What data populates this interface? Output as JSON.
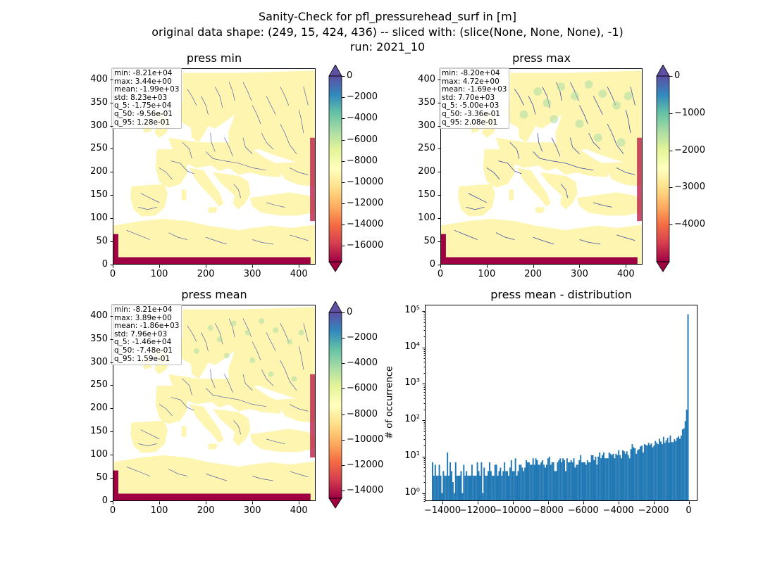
{
  "title": {
    "line1": "Sanity-Check for pfl_pressurehead_surf in [m]",
    "line2": "original data shape: (249, 15, 424, 436) -- sliced with: (slice(None, None, None), -1)",
    "line3": "run: 2021_10"
  },
  "colors": {
    "spectral": [
      "#9e0142",
      "#d53e4f",
      "#f46d43",
      "#fdae61",
      "#fee08b",
      "#ffffbf",
      "#e6f598",
      "#abdda4",
      "#66c2a5",
      "#3288bd",
      "#5e4fa2"
    ],
    "hist_bar": "#1f77b4",
    "river": "#3b4aa8",
    "land": "#fdf5b0"
  },
  "chart_data": [
    {
      "type": "heatmap",
      "title": "press min",
      "xlim": [
        0,
        436
      ],
      "ylim": [
        0,
        424
      ],
      "xticks": [
        "0",
        "100",
        "200",
        "300",
        "400"
      ],
      "yticks": [
        "0",
        "50",
        "100",
        "150",
        "200",
        "250",
        "300",
        "350",
        "400"
      ],
      "colorbar": {
        "min": -17500,
        "max": 0,
        "ticks": [
          "0",
          "−2000",
          "−4000",
          "−6000",
          "−8000",
          "−10000",
          "−12000",
          "−14000",
          "−16000"
        ],
        "tick_values": [
          0,
          -2000,
          -4000,
          -6000,
          -8000,
          -10000,
          -12000,
          -14000,
          -16000
        ]
      },
      "stats": [
        "min: -8.21e+04",
        "max: 3.44e+00",
        "mean: -1.99e+03",
        "std: 8.23e+03",
        "q_5: -1.75e+04",
        "q_50: -9.56e-01",
        "q_95: 1.28e-01"
      ]
    },
    {
      "type": "heatmap",
      "title": "press max",
      "xlim": [
        0,
        436
      ],
      "ylim": [
        0,
        424
      ],
      "xticks": [
        "0",
        "100",
        "200",
        "300",
        "400"
      ],
      "yticks": [
        "0",
        "50",
        "100",
        "150",
        "200",
        "250",
        "300",
        "350",
        "400"
      ],
      "colorbar": {
        "min": -5000,
        "max": 0,
        "ticks": [
          "0",
          "−1000",
          "−2000",
          "−3000",
          "−4000"
        ],
        "tick_values": [
          0,
          -1000,
          -2000,
          -3000,
          -4000
        ]
      },
      "stats": [
        "min: -8.20e+04",
        "max: 4.72e+00",
        "mean: -1.69e+03",
        "std: 7.70e+03",
        "q_5: -5.00e+03",
        "q_50: -3.36e-01",
        "q_95: 2.08e-01"
      ]
    },
    {
      "type": "heatmap",
      "title": "press mean",
      "xlim": [
        0,
        436
      ],
      "ylim": [
        0,
        424
      ],
      "xticks": [
        "0",
        "100",
        "200",
        "300",
        "400"
      ],
      "yticks": [
        "0",
        "50",
        "100",
        "150",
        "200",
        "250",
        "300",
        "350",
        "400"
      ],
      "colorbar": {
        "min": -14600,
        "max": 0,
        "ticks": [
          "0",
          "−2000",
          "−4000",
          "−6000",
          "−8000",
          "−10000",
          "−12000",
          "−14000"
        ],
        "tick_values": [
          0,
          -2000,
          -4000,
          -6000,
          -8000,
          -10000,
          -12000,
          -14000
        ]
      },
      "stats": [
        "min: -8.21e+04",
        "max: 3.89e+00",
        "mean: -1.86e+03",
        "std: 7.96e+03",
        "q_5: -1.46e+04",
        "q_50: -7.48e-01",
        "q_95: 1.59e-01"
      ]
    },
    {
      "type": "bar",
      "title": "press mean - distribution",
      "ylabel": "# of occurrence",
      "yscale": "log",
      "xlim": [
        -15000,
        500
      ],
      "ylim": [
        0.6,
        150000
      ],
      "xticks": [
        "−14000",
        "−12000",
        "−10000",
        "−8000",
        "−6000",
        "−4000",
        "−2000",
        "0"
      ],
      "xtick_values": [
        -14000,
        -12000,
        -10000,
        -8000,
        -6000,
        -4000,
        -2000,
        0
      ],
      "yticks": [
        "10⁰",
        "10¹",
        "10²",
        "10³",
        "10⁴",
        "10⁵"
      ],
      "ytick_values": [
        1,
        10,
        100,
        1000,
        10000,
        100000
      ],
      "bin_range": [
        -14600,
        0
      ],
      "counts": [
        7,
        3,
        6,
        3,
        3,
        6,
        3,
        1,
        4,
        3,
        3,
        13,
        3,
        7,
        4,
        2,
        1,
        7,
        3,
        3,
        3,
        4,
        1,
        6,
        3,
        4,
        3,
        3,
        3,
        6,
        3,
        3,
        3,
        7,
        4,
        3,
        7,
        1,
        5,
        3,
        3,
        4,
        7,
        4,
        3,
        3,
        6,
        6,
        3,
        4,
        5,
        3,
        4,
        7,
        4,
        4,
        3,
        5,
        8,
        4,
        4,
        9,
        3,
        4,
        6,
        6,
        5,
        4,
        5,
        8,
        7,
        7,
        6,
        6,
        9,
        6,
        9,
        8,
        6,
        6,
        7,
        8,
        6,
        5,
        6,
        9,
        10,
        6,
        7,
        7,
        4,
        4,
        7,
        8,
        9,
        7,
        9,
        8,
        4,
        9,
        7,
        7,
        8,
        7,
        9,
        5,
        6,
        6,
        8,
        11,
        7,
        7,
        7,
        6,
        8,
        7,
        7,
        11,
        11,
        8,
        10,
        6,
        10,
        13,
        9,
        11,
        13,
        9,
        9,
        9,
        13,
        12,
        11,
        12,
        9,
        12,
        11,
        15,
        11,
        9,
        15,
        14,
        12,
        14,
        11,
        9,
        16,
        22,
        18,
        17,
        12,
        15,
        16,
        19,
        20,
        13,
        22,
        21,
        20,
        24,
        21,
        23,
        18,
        20,
        27,
        24,
        22,
        31,
        26,
        22,
        35,
        24,
        28,
        33,
        24,
        38,
        25,
        25,
        30,
        27,
        33,
        36,
        31,
        38,
        56,
        60,
        95,
        195,
        82000
      ]
    }
  ]
}
